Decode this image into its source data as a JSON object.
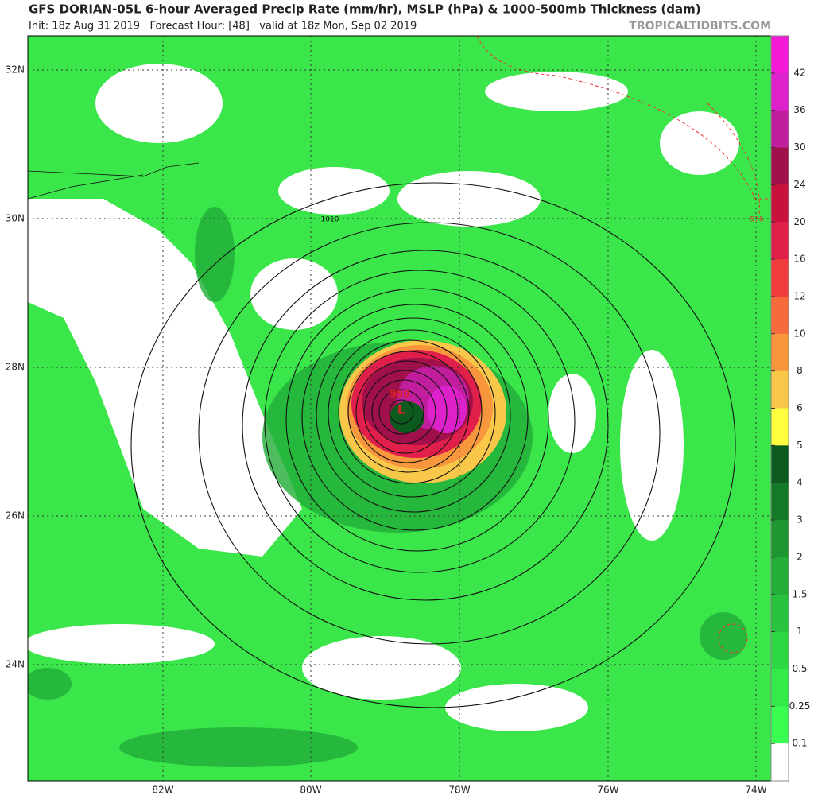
{
  "header": {
    "title": "GFS DORIAN-05L 6-hour Averaged Precip Rate (mm/hr), MSLP (hPa) & 1000-500mb Thickness (dam)",
    "subtitle": "Init: 18z Aug 31 2019   Forecast Hour: [48]   valid at 18z Mon, Sep 02 2019",
    "credit": "TROPICALTIDBITS.COM"
  },
  "map": {
    "lat_labels": [
      "32N",
      "30N",
      "28N",
      "26N",
      "24N"
    ],
    "lon_labels": [
      "82W",
      "80W",
      "78W",
      "76W",
      "74W"
    ],
    "annotations": {
      "isobar": "1010",
      "center_pressure": "950",
      "low": "L",
      "thickness": "576"
    }
  },
  "colorbar": {
    "levels": [
      42,
      36,
      30,
      24,
      20,
      16,
      12,
      10,
      8,
      6,
      5,
      4,
      3,
      2,
      1.5,
      1,
      0.5,
      0.25,
      0.1
    ],
    "colors": [
      "#f51ad8",
      "#dd22cc",
      "#c01e9c",
      "#a0104a",
      "#c8123c",
      "#e0204a",
      "#f03c3c",
      "#f56a3a",
      "#f7963c",
      "#f9c84a",
      "#ffff40",
      "#0d5a1e",
      "#157a28",
      "#1e9632",
      "#22ad38",
      "#28c23e",
      "#2ed744",
      "#34e94a",
      "#3aff50",
      "#ffffff"
    ]
  }
}
